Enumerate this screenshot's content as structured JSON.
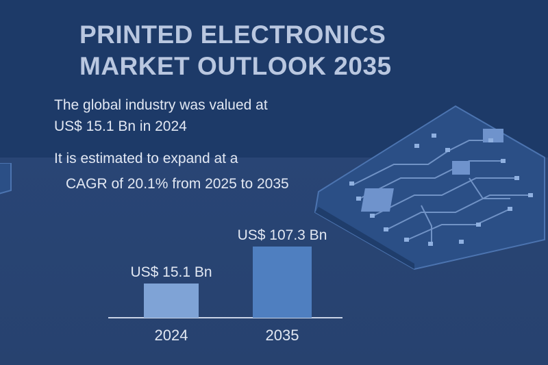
{
  "title_lines": [
    "PRINTED ELECTRONICS",
    "MARKET OUTLOOK 2035"
  ],
  "intro_line1": "The global industry was valued at",
  "intro_line2": "US$ 15.1 Bn in 2024",
  "forecast_line1": "It is estimated to expand at a",
  "forecast_line2": "CAGR of 20.1% from 2025 to 2035",
  "colors": {
    "background_top": "#1d3a68",
    "background_bottom": "#294575",
    "bar_2024": "#7fa3d6",
    "bar_2035": "#4f7fc0",
    "text": "#e2e8f3"
  },
  "chart_data": {
    "type": "bar",
    "categories": [
      "2024",
      "2035"
    ],
    "values": [
      15.1,
      107.3
    ],
    "data_labels": [
      "US$ 15.1 Bn",
      "US$ 107.3 Bn"
    ],
    "title": "",
    "xlabel": "",
    "ylabel": "",
    "ylim": [
      0,
      107.3
    ],
    "grid": false,
    "legend": "none"
  }
}
